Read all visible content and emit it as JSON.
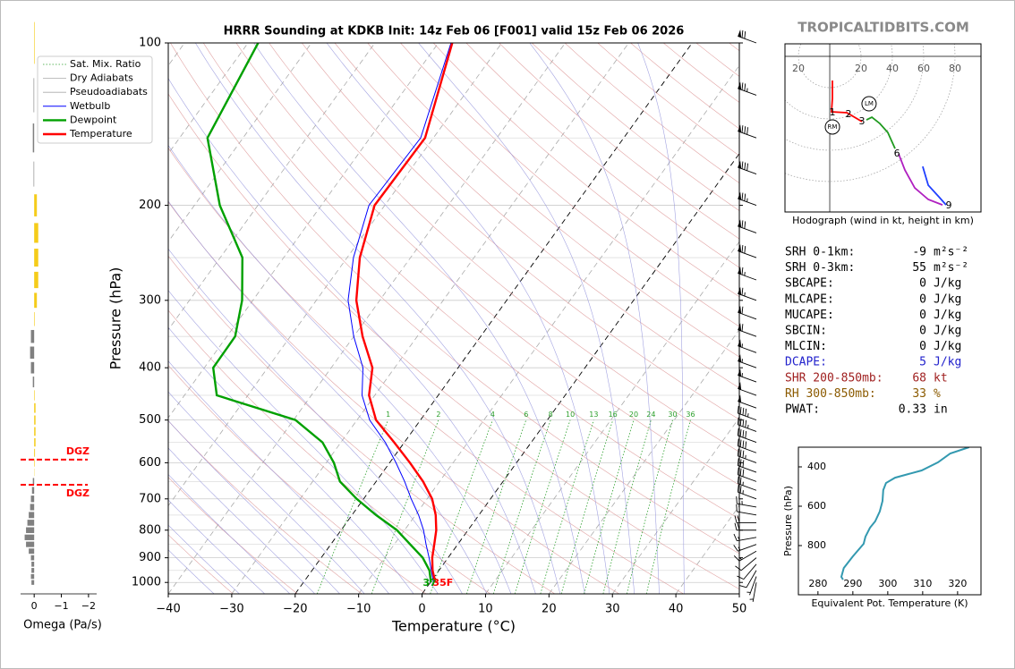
{
  "watermark": "TROPICALTIDBITS.COM",
  "chart_data": [
    {
      "type": "skewt",
      "title": "HRRR Sounding at KDKB Init: 14z Feb 06 [F001] valid 15z Feb 06 2026",
      "xlabel": "Temperature (°C)",
      "ylabel": "Pressure (hPa)",
      "xlim": [
        -40,
        50
      ],
      "ylim": [
        1050,
        100
      ],
      "log_y": true,
      "xticks": [
        {
          "value": -40,
          "label": "−40"
        },
        {
          "value": -30,
          "label": "−30"
        },
        {
          "value": -20,
          "label": "−20"
        },
        {
          "value": -10,
          "label": "−10"
        },
        0,
        10,
        20,
        30,
        40,
        50
      ],
      "yticks": [
        100,
        200,
        300,
        400,
        500,
        600,
        700,
        800,
        900,
        1000
      ],
      "highlight_isotherms": [
        0,
        -20
      ],
      "mixing_ratios": [
        1,
        2,
        4,
        6,
        8,
        10,
        13,
        16,
        20,
        24,
        30,
        36
      ],
      "background_lines": [
        {
          "name": "Sat. Mix. Ratio",
          "color": "#2ca02c"
        },
        {
          "name": "Dry Adiabats",
          "color": "#d98c8c"
        },
        {
          "name": "Pseudoadiabats",
          "color": "#8c8cd9"
        }
      ],
      "pressures": [
        1000,
        950,
        900,
        850,
        800,
        750,
        700,
        650,
        600,
        550,
        500,
        450,
        400,
        350,
        300,
        250,
        200,
        150,
        100
      ],
      "series": [
        {
          "name": "Wetbulb",
          "color": "#0000ff",
          "values": [
            0.5,
            -1.2,
            -3,
            -5,
            -7,
            -9.5,
            -12.5,
            -15.5,
            -19,
            -23,
            -28,
            -32,
            -35,
            -40,
            -45,
            -49,
            -52.5,
            -52,
            -58
          ]
        },
        {
          "name": "Dewpoint",
          "color": "#00a000",
          "values": [
            0.1,
            -1.5,
            -4.0,
            -7.5,
            -11.2,
            -16.2,
            -21.1,
            -25.7,
            -28.8,
            -32.9,
            -39.7,
            -54.9,
            -58.6,
            -58.7,
            -61.7,
            -66.5,
            -76,
            -85.6,
            -88.4
          ]
        },
        {
          "name": "Temperature",
          "color": "#ff0000",
          "values": [
            0.8,
            -1.0,
            -2.5,
            -3.7,
            -5.0,
            -6.8,
            -9.2,
            -12.6,
            -16.8,
            -21.6,
            -27.0,
            -30.9,
            -33.5,
            -38.6,
            -43.7,
            -48,
            -51.6,
            -51.3,
            -57.8
          ]
        }
      ],
      "surface_labels": [
        {
          "text": "37",
          "color": "#00a000"
        },
        {
          "text": "35F",
          "color": "#ff0000"
        }
      ],
      "wind": {
        "pressures": [
          100,
          125,
          150,
          175,
          200,
          225,
          250,
          275,
          300,
          325,
          350,
          375,
          400,
          425,
          450,
          475,
          500,
          525,
          550,
          575,
          600,
          625,
          650,
          675,
          700,
          725,
          750,
          775,
          800,
          825,
          850,
          875,
          900,
          925,
          950,
          975,
          1000
        ],
        "speed": [
          70,
          75,
          80,
          80,
          75,
          70,
          70,
          65,
          65,
          60,
          60,
          55,
          55,
          55,
          50,
          50,
          45,
          45,
          40,
          40,
          35,
          30,
          30,
          25,
          25,
          25,
          20,
          20,
          20,
          15,
          15,
          15,
          10,
          10,
          10,
          5,
          5
        ],
        "direction": [
          290,
          290,
          290,
          290,
          290,
          290,
          290,
          290,
          290,
          290,
          290,
          290,
          290,
          290,
          290,
          290,
          290,
          290,
          290,
          290,
          290,
          290,
          290,
          290,
          290,
          280,
          280,
          270,
          270,
          260,
          250,
          240,
          230,
          220,
          210,
          200,
          190
        ]
      }
    },
    {
      "type": "bar",
      "xlabel": "Omega (Pa/s)",
      "xlim": [
        0.5,
        -2.3
      ],
      "ylim": [
        1050,
        100
      ],
      "xticks": [
        0,
        {
          "value": -1,
          "label": "−1"
        },
        {
          "value": -2,
          "label": "−2"
        }
      ],
      "pressures": [
        100,
        125,
        150,
        175,
        200,
        225,
        250,
        275,
        300,
        325,
        350,
        375,
        400,
        425,
        450,
        475,
        500,
        525,
        550,
        575,
        600,
        625,
        650,
        675,
        700,
        725,
        750,
        775,
        800,
        825,
        850,
        875,
        900,
        925,
        950,
        975,
        1000
      ],
      "values": [
        -0.02,
        0.02,
        0.05,
        0.02,
        -0.1,
        -0.15,
        -0.15,
        -0.15,
        -0.1,
        -0.02,
        0.12,
        0.15,
        0.12,
        0.05,
        -0.02,
        -0.05,
        -0.05,
        -0.05,
        -0.05,
        -0.03,
        -0.02,
        -0.01,
        0.05,
        0.08,
        0.12,
        0.15,
        0.2,
        0.25,
        0.3,
        0.35,
        0.3,
        0.2,
        0.12,
        0.1,
        0.1,
        0.12,
        0.1
      ],
      "colors": {
        "negative": "#f5cc1a",
        "positive": "#808080"
      },
      "dgz": {
        "label": "DGZ",
        "pressures": [
          592,
          659
        ],
        "color": "#ff0000"
      }
    },
    {
      "type": "hodograph",
      "title": "Hodograph (wind in kt, height in km)",
      "xlim": [
        -28.6,
        96.6
      ],
      "ylim": [
        -99.4,
        8
      ],
      "xticks": [
        {
          "value": -20,
          "label": "20"
        },
        20,
        40,
        60,
        80
      ],
      "segments": [
        {
          "color": "#ff0000",
          "u": [
            1.7,
            1.7,
            1.1,
            10.9,
            20.6
          ],
          "v": [
            -15.4,
            -26.9,
            -35.4,
            -36,
            -41.7
          ]
        },
        {
          "color": "#1f9a1f",
          "u": [
            23.4,
            26.9,
            32,
            37.1,
            41.7
          ],
          "v": [
            -40.6,
            -38.9,
            -42.9,
            -48.6,
            -58.9
          ]
        },
        {
          "color": "#b020c0",
          "u": [
            44,
            48,
            54.3,
            62.9,
            72
          ],
          "v": [
            -62.3,
            -72.6,
            -84,
            -91.4,
            -94.9
          ]
        },
        {
          "color": "#1f3fff",
          "u": [
            59.4,
            62.9,
            69.7,
            74.3
          ],
          "v": [
            -70.3,
            -82.3,
            -89.7,
            -94.9
          ]
        }
      ],
      "height_labels": [
        {
          "label": 1,
          "u": 1.7,
          "v": -36
        },
        {
          "label": 2,
          "u": 12,
          "v": -37.1
        },
        {
          "label": 3,
          "u": 20.6,
          "v": -41.7
        },
        {
          "label": 6,
          "u": 42.9,
          "v": -62.3
        },
        {
          "label": 9,
          "u": 76,
          "v": -95.4
        }
      ],
      "storm_motion": [
        {
          "label": "RM",
          "u": 1.7,
          "v": -45.1
        },
        {
          "label": "LM",
          "u": 25.1,
          "v": -30.3
        }
      ]
    },
    {
      "type": "line",
      "xlabel": "Equivalent Pot. Temperature (K)",
      "ylabel": "Pressure (hPa)",
      "xlim": [
        274.4,
        326.7
      ],
      "ylim": [
        1050,
        300
      ],
      "xticks": [
        280,
        290,
        300,
        310,
        320
      ],
      "yticks": [
        400,
        600,
        800
      ],
      "color": "#3399b0",
      "x": [
        323.3,
        317.9,
        314.4,
        309.7,
        302.1,
        299.5,
        298.7,
        298.5,
        297.7,
        296.4,
        294.9,
        293.6,
        293.1,
        290,
        287.4,
        286.7,
        287.2
      ],
      "y": [
        300,
        332,
        377,
        418,
        455,
        482,
        518,
        573,
        627,
        677,
        709,
        755,
        791,
        855,
        914,
        959,
        973
      ]
    }
  ],
  "indices": [
    {
      "label": "SRH 0-1km:",
      "value": -9,
      "unit": "m²s⁻²",
      "color": "#000000"
    },
    {
      "label": "SRH 0-3km:",
      "value": 55,
      "unit": "m²s⁻²",
      "color": "#000000"
    },
    {
      "label": "SBCAPE:",
      "value": 0,
      "unit": "J/kg",
      "color": "#000000"
    },
    {
      "label": "MLCAPE:",
      "value": 0,
      "unit": "J/kg",
      "color": "#000000"
    },
    {
      "label": "MUCAPE:",
      "value": 0,
      "unit": "J/kg",
      "color": "#000000"
    },
    {
      "label": "SBCIN:",
      "value": 0,
      "unit": "J/kg",
      "color": "#000000"
    },
    {
      "label": "MLCIN:",
      "value": 0,
      "unit": "J/kg",
      "color": "#000000"
    },
    {
      "label": "DCAPE:",
      "value": 5,
      "unit": "J/kg",
      "color": "#2222cc"
    },
    {
      "label": "SHR 200-850mb:",
      "value": 68,
      "unit": "kt",
      "color": "#a02020"
    },
    {
      "label": "RH 300-850mb:",
      "value": 33,
      "unit": "%",
      "color": "#8b5a00"
    },
    {
      "label": "PWAT:",
      "value": 0.33,
      "unit": "in",
      "color": "#000000"
    }
  ]
}
